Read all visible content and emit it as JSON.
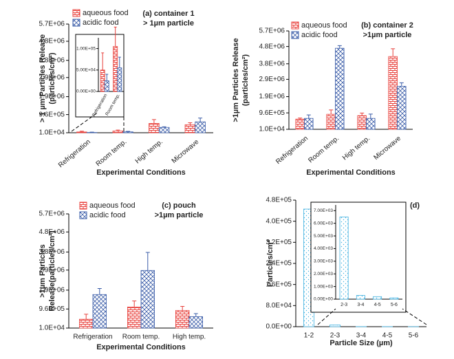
{
  "chart_data": [
    {
      "type": "bar",
      "annotation": [
        "(a) container 1",
        "> 1µm particle"
      ],
      "ylabel": [
        "> 1 µm Particles Release",
        "(particles/cm²)"
      ],
      "xlabel": "Experimental Conditions",
      "categories": [
        "Refrigeration",
        "Room temp.",
        "High temp.",
        "Microwave"
      ],
      "series": [
        {
          "name": "aqueous food",
          "color": "#e8413c",
          "values": [
            50000,
            105000,
            500000,
            430000
          ],
          "errors": [
            40000,
            45000,
            200000,
            100000
          ]
        },
        {
          "name": "acidic food",
          "color": "#3a5ca8",
          "values": [
            25000,
            55000,
            290000,
            580000
          ],
          "errors": [
            15000,
            25000,
            30000,
            200000
          ]
        }
      ],
      "ylim": [
        10000,
        5700000
      ],
      "yticks": [
        {
          "value": 10000,
          "label": "1.0E+04"
        },
        {
          "value": 960000,
          "label": "9.6E+05"
        },
        {
          "value": 1900000,
          "label": "1.9E+06"
        },
        {
          "value": 2900000,
          "label": "2.9E+06"
        },
        {
          "value": 3800000,
          "label": "3.8E+06"
        },
        {
          "value": 4800000,
          "label": "4.8E+06"
        },
        {
          "value": 5700000,
          "label": "5.7E+06"
        }
      ],
      "legend": "upper left",
      "inset": {
        "ylim": [
          0,
          125000
        ],
        "yticks": [
          {
            "value": 0,
            "label": "0.00E+00"
          },
          {
            "value": 50000,
            "label": "5.00E+04"
          },
          {
            "value": 100000,
            "label": "1.00E+05"
          }
        ]
      }
    },
    {
      "type": "bar",
      "annotation": [
        "(b) container 2",
        ">1µm particle"
      ],
      "ylabel": [
        ">1µm Particles Release",
        "(particles/cm²)"
      ],
      "xlabel": "Experimental Conditions",
      "categories": [
        "Refrigeration",
        "Room temp.",
        "High temp.",
        "Microwave"
      ],
      "series": [
        {
          "name": "aqueous food",
          "color": "#e8413c",
          "values": [
            600000,
            880000,
            800000,
            4220000
          ],
          "errors": [
            60000,
            250000,
            150000,
            450000
          ]
        },
        {
          "name": "acidic food",
          "color": "#3a5ca8",
          "values": [
            640000,
            4700000,
            640000,
            2500000
          ],
          "errors": [
            200000,
            150000,
            250000,
            200000
          ]
        }
      ],
      "ylim": [
        10000,
        5700000
      ],
      "yticks": [
        {
          "value": 10000,
          "label": "1.0E+04"
        },
        {
          "value": 960000,
          "label": "9.6E+05"
        },
        {
          "value": 1900000,
          "label": "1.9E+06"
        },
        {
          "value": 2900000,
          "label": "2.9E+06"
        },
        {
          "value": 3800000,
          "label": "3.8E+06"
        },
        {
          "value": 4800000,
          "label": "4.8E+06"
        },
        {
          "value": 5700000,
          "label": "5.7E+06"
        }
      ],
      "legend": "upper left"
    },
    {
      "type": "bar",
      "annotation": [
        "(c) pouch",
        ">1µm particle"
      ],
      "ylabel": [
        ">1µm Particles",
        "Release(particles/cm²)"
      ],
      "xlabel": "Experimental Conditions",
      "categories": [
        "Refrigeration",
        "Room temp.",
        "High temp."
      ],
      "series": [
        {
          "name": "aqueous food",
          "color": "#e8413c",
          "values": [
            450000,
            1060000,
            890000
          ],
          "errors": [
            250000,
            300000,
            200000
          ]
        },
        {
          "name": "acidic food",
          "color": "#3a5ca8",
          "values": [
            1680000,
            2880000,
            580000
          ],
          "errors": [
            300000,
            900000,
            150000
          ]
        }
      ],
      "ylim": [
        10000,
        5700000
      ],
      "yticks": [
        {
          "value": 10000,
          "label": "1.0E+04"
        },
        {
          "value": 960000,
          "label": "9.6E+05"
        },
        {
          "value": 1900000,
          "label": "1.9E+06"
        },
        {
          "value": 2900000,
          "label": "2.9E+06"
        },
        {
          "value": 3800000,
          "label": "3.8E+06"
        },
        {
          "value": 4800000,
          "label": "4.8E+06"
        },
        {
          "value": 5700000,
          "label": "5.7E+06"
        }
      ],
      "legend": "upper left"
    },
    {
      "type": "bar",
      "annotation": [
        "(d)"
      ],
      "ylabel": [
        "Particles/cm²"
      ],
      "xlabel": "Particle Size (µm)",
      "categories": [
        "1-2",
        "2-3",
        "3-4",
        "4-5",
        "5-6"
      ],
      "values": [
        446000,
        6500,
        300,
        200,
        100
      ],
      "color": "#3fb0e0",
      "ylim": [
        0,
        480000
      ],
      "yticks": [
        {
          "value": 0,
          "label": "0.0E+00"
        },
        {
          "value": 80000,
          "label": "8.0E+04"
        },
        {
          "value": 160000,
          "label": "1.6E+05"
        },
        {
          "value": 240000,
          "label": "2.4E+05"
        },
        {
          "value": 320000,
          "label": "3.2E+05"
        },
        {
          "value": 400000,
          "label": "4.0E+05"
        },
        {
          "value": 480000,
          "label": "4.8E+05"
        }
      ],
      "inset": {
        "ylim": [
          0,
          7450
        ],
        "yticks": [
          {
            "value": 0,
            "label": "0.00E+00"
          },
          {
            "value": 1000,
            "label": "1.00E+03"
          },
          {
            "value": 2000,
            "label": "2.00E+03"
          },
          {
            "value": 3000,
            "label": "3.00E+03"
          },
          {
            "value": 4000,
            "label": "4.00E+03"
          },
          {
            "value": 5000,
            "label": "5.00E+03"
          },
          {
            "value": 6000,
            "label": "6.00E+03"
          },
          {
            "value": 7000,
            "label": "7.00E+03"
          }
        ]
      }
    }
  ]
}
